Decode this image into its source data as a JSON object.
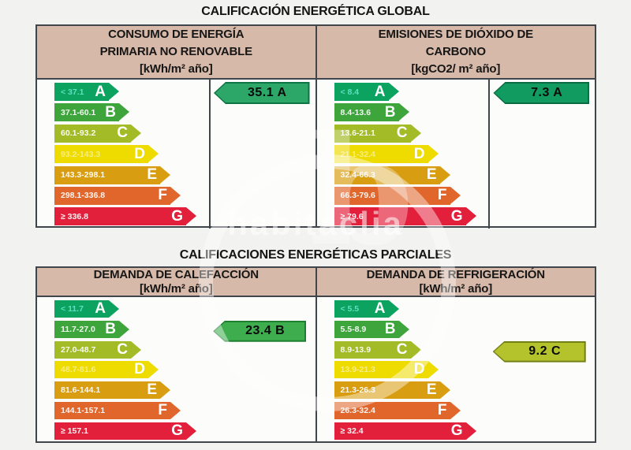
{
  "watermark": {
    "text": "habitaclia",
    "glyph": "b"
  },
  "grade_colors": {
    "A": "#0ca25f",
    "B": "#3ea53d",
    "C": "#a2bb27",
    "D": "#eedb00",
    "E": "#d89d10",
    "F": "#e1662c",
    "G": "#e3203b"
  },
  "header_bg": "#d7b9a9",
  "border_color": "#40454c",
  "sections": [
    {
      "id": "global",
      "title": "CALIFICACIÓN ENERGÉTICA GLOBAL",
      "panels": [
        {
          "id": "consumo-energia",
          "header_lines": [
            "CONSUMO DE ENERGÍA",
            "PRIMARIA NO RENOVABLE",
            "[kWh/m² año]"
          ],
          "rows": [
            {
              "grade": "A",
              "range": "< 37.1"
            },
            {
              "grade": "B",
              "range": "37.1-60.1"
            },
            {
              "grade": "C",
              "range": "60.1-93.2"
            },
            {
              "grade": "D",
              "range": "93.2-143.3"
            },
            {
              "grade": "E",
              "range": "143.3-298.1"
            },
            {
              "grade": "F",
              "range": "298.1-336.8"
            },
            {
              "grade": "G",
              "range": "≥ 336.8"
            }
          ],
          "rating": {
            "label": "35.1 A",
            "value": "35.1",
            "grade": "A",
            "row": 0,
            "fill": "#2da767",
            "stroke": "#0d7544"
          }
        },
        {
          "id": "emisiones-co2",
          "header_lines": [
            "EMISIONES DE DIÓXIDO DE",
            "CARBONO",
            "[kgCO2/ m² año]"
          ],
          "rows": [
            {
              "grade": "A",
              "range": "< 8.4"
            },
            {
              "grade": "B",
              "range": "8.4-13.6"
            },
            {
              "grade": "C",
              "range": "13.6-21.1"
            },
            {
              "grade": "D",
              "range": "21.1-32.4"
            },
            {
              "grade": "E",
              "range": "32.4-66.3"
            },
            {
              "grade": "F",
              "range": "66.3-79.6"
            },
            {
              "grade": "G",
              "range": "≥ 79.6"
            }
          ],
          "rating": {
            "label": "7.3 A",
            "value": "7.3",
            "grade": "A",
            "row": 0,
            "fill": "#129b61",
            "stroke": "#0a6b43"
          }
        }
      ]
    },
    {
      "id": "partial",
      "title": "CALIFICACIONES ENERGÉTICAS PARCIALES",
      "panels": [
        {
          "id": "demanda-calefaccion",
          "header_lines": [
            "DEMANDA DE CALEFACCIÓN",
            "[kWh/m² año]"
          ],
          "rows": [
            {
              "grade": "A",
              "range": "< 11.7"
            },
            {
              "grade": "B",
              "range": "11.7-27.0"
            },
            {
              "grade": "C",
              "range": "27.0-48.7"
            },
            {
              "grade": "D",
              "range": "48.7-81.6"
            },
            {
              "grade": "E",
              "range": "81.6-144.1"
            },
            {
              "grade": "F",
              "range": "144.1-157.1"
            },
            {
              "grade": "G",
              "range": "≥ 157.1"
            }
          ],
          "rating": {
            "label": "23.4 B",
            "value": "23.4",
            "grade": "B",
            "row": 1,
            "fill": "#3ead4e",
            "stroke": "#1d7f2f"
          }
        },
        {
          "id": "demanda-refrigeracion",
          "header_lines": [
            "DEMANDA DE REFRIGERACIÓN",
            "[kWh/m² año]"
          ],
          "rows": [
            {
              "grade": "A",
              "range": "< 5.5"
            },
            {
              "grade": "B",
              "range": "5.5-8.9"
            },
            {
              "grade": "C",
              "range": "8.9-13.9"
            },
            {
              "grade": "D",
              "range": "13.9-21.3"
            },
            {
              "grade": "E",
              "range": "21.3-26.3"
            },
            {
              "grade": "F",
              "range": "26.3-32.4"
            },
            {
              "grade": "G",
              "range": "≥ 32.4"
            }
          ],
          "rating": {
            "label": "9.2 C",
            "value": "9.2",
            "grade": "C",
            "row": 2,
            "fill": "#b4c32b",
            "stroke": "#747f18"
          }
        }
      ]
    }
  ],
  "chart_data": [
    {
      "type": "bar",
      "title": "CONSUMO DE ENERGÍA PRIMARIA NO RENOVABLE",
      "unit": "kWh/m² año",
      "categories": [
        "A",
        "B",
        "C",
        "D",
        "E",
        "F",
        "G"
      ],
      "tick_labels": [
        "< 37.1",
        "37.1-60.1",
        "60.1-93.2",
        "93.2-143.3",
        "143.3-298.1",
        "298.1-336.8",
        "≥ 336.8"
      ],
      "rating_value": 35.1,
      "rating_grade": "A"
    },
    {
      "type": "bar",
      "title": "EMISIONES DE DIÓXIDO DE CARBONO",
      "unit": "kgCO2/ m² año",
      "categories": [
        "A",
        "B",
        "C",
        "D",
        "E",
        "F",
        "G"
      ],
      "tick_labels": [
        "< 8.4",
        "8.4-13.6",
        "13.6-21.1",
        "21.1-32.4",
        "32.4-66.3",
        "66.3-79.6",
        "≥ 79.6"
      ],
      "rating_value": 7.3,
      "rating_grade": "A"
    },
    {
      "type": "bar",
      "title": "DEMANDA DE CALEFACCIÓN",
      "unit": "kWh/m² año",
      "categories": [
        "A",
        "B",
        "C",
        "D",
        "E",
        "F",
        "G"
      ],
      "tick_labels": [
        "< 11.7",
        "11.7-27.0",
        "27.0-48.7",
        "48.7-81.6",
        "81.6-144.1",
        "144.1-157.1",
        "≥ 157.1"
      ],
      "rating_value": 23.4,
      "rating_grade": "B"
    },
    {
      "type": "bar",
      "title": "DEMANDA DE REFRIGERACIÓN",
      "unit": "kWh/m² año",
      "categories": [
        "A",
        "B",
        "C",
        "D",
        "E",
        "F",
        "G"
      ],
      "tick_labels": [
        "< 5.5",
        "5.5-8.9",
        "8.9-13.9",
        "13.9-21.3",
        "21.3-26.3",
        "26.3-32.4",
        "≥ 32.4"
      ],
      "rating_value": 9.2,
      "rating_grade": "C"
    }
  ]
}
